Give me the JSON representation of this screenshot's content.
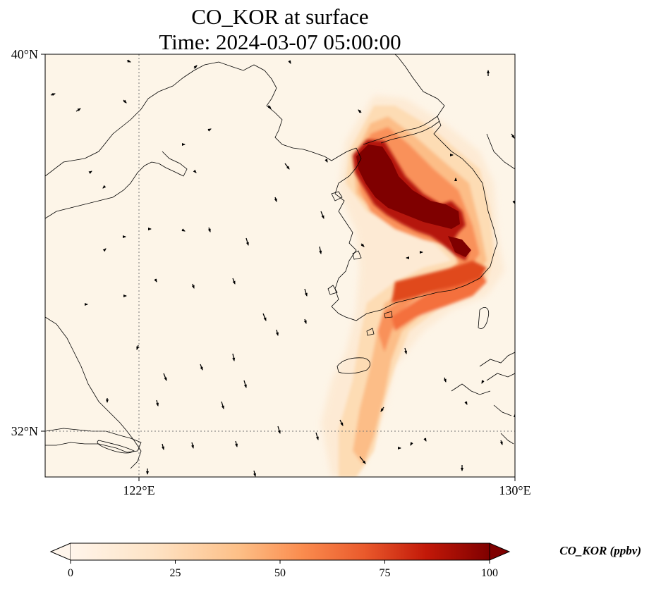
{
  "map": {
    "title_line1": "CO_KOR at surface",
    "title_line2": "Time: 2024-03-07 05:00:00",
    "lat_ticks": [
      "40°N",
      "32°N"
    ],
    "lon_ticks": [
      "122°E",
      "130°E"
    ],
    "extent": {
      "lon_min": 120,
      "lon_max": 130,
      "lat_min": 31,
      "lat_max": 40
    },
    "gridlines": {
      "lons": [
        122
      ],
      "lats": [
        32
      ],
      "style": "dotted"
    },
    "background_color": "#fdf5e8",
    "colormap": [
      "#fff5eb",
      "#fdd9a8",
      "#fdab6a",
      "#f3663a",
      "#c8170b",
      "#7f0000"
    ],
    "plume_description_note": null
  },
  "colorbar": {
    "label": "CO_KOR (ppbv)",
    "ticks": [
      "0",
      "25",
      "50",
      "75",
      "100"
    ],
    "min": 0,
    "max": 100,
    "extend": "both"
  }
}
